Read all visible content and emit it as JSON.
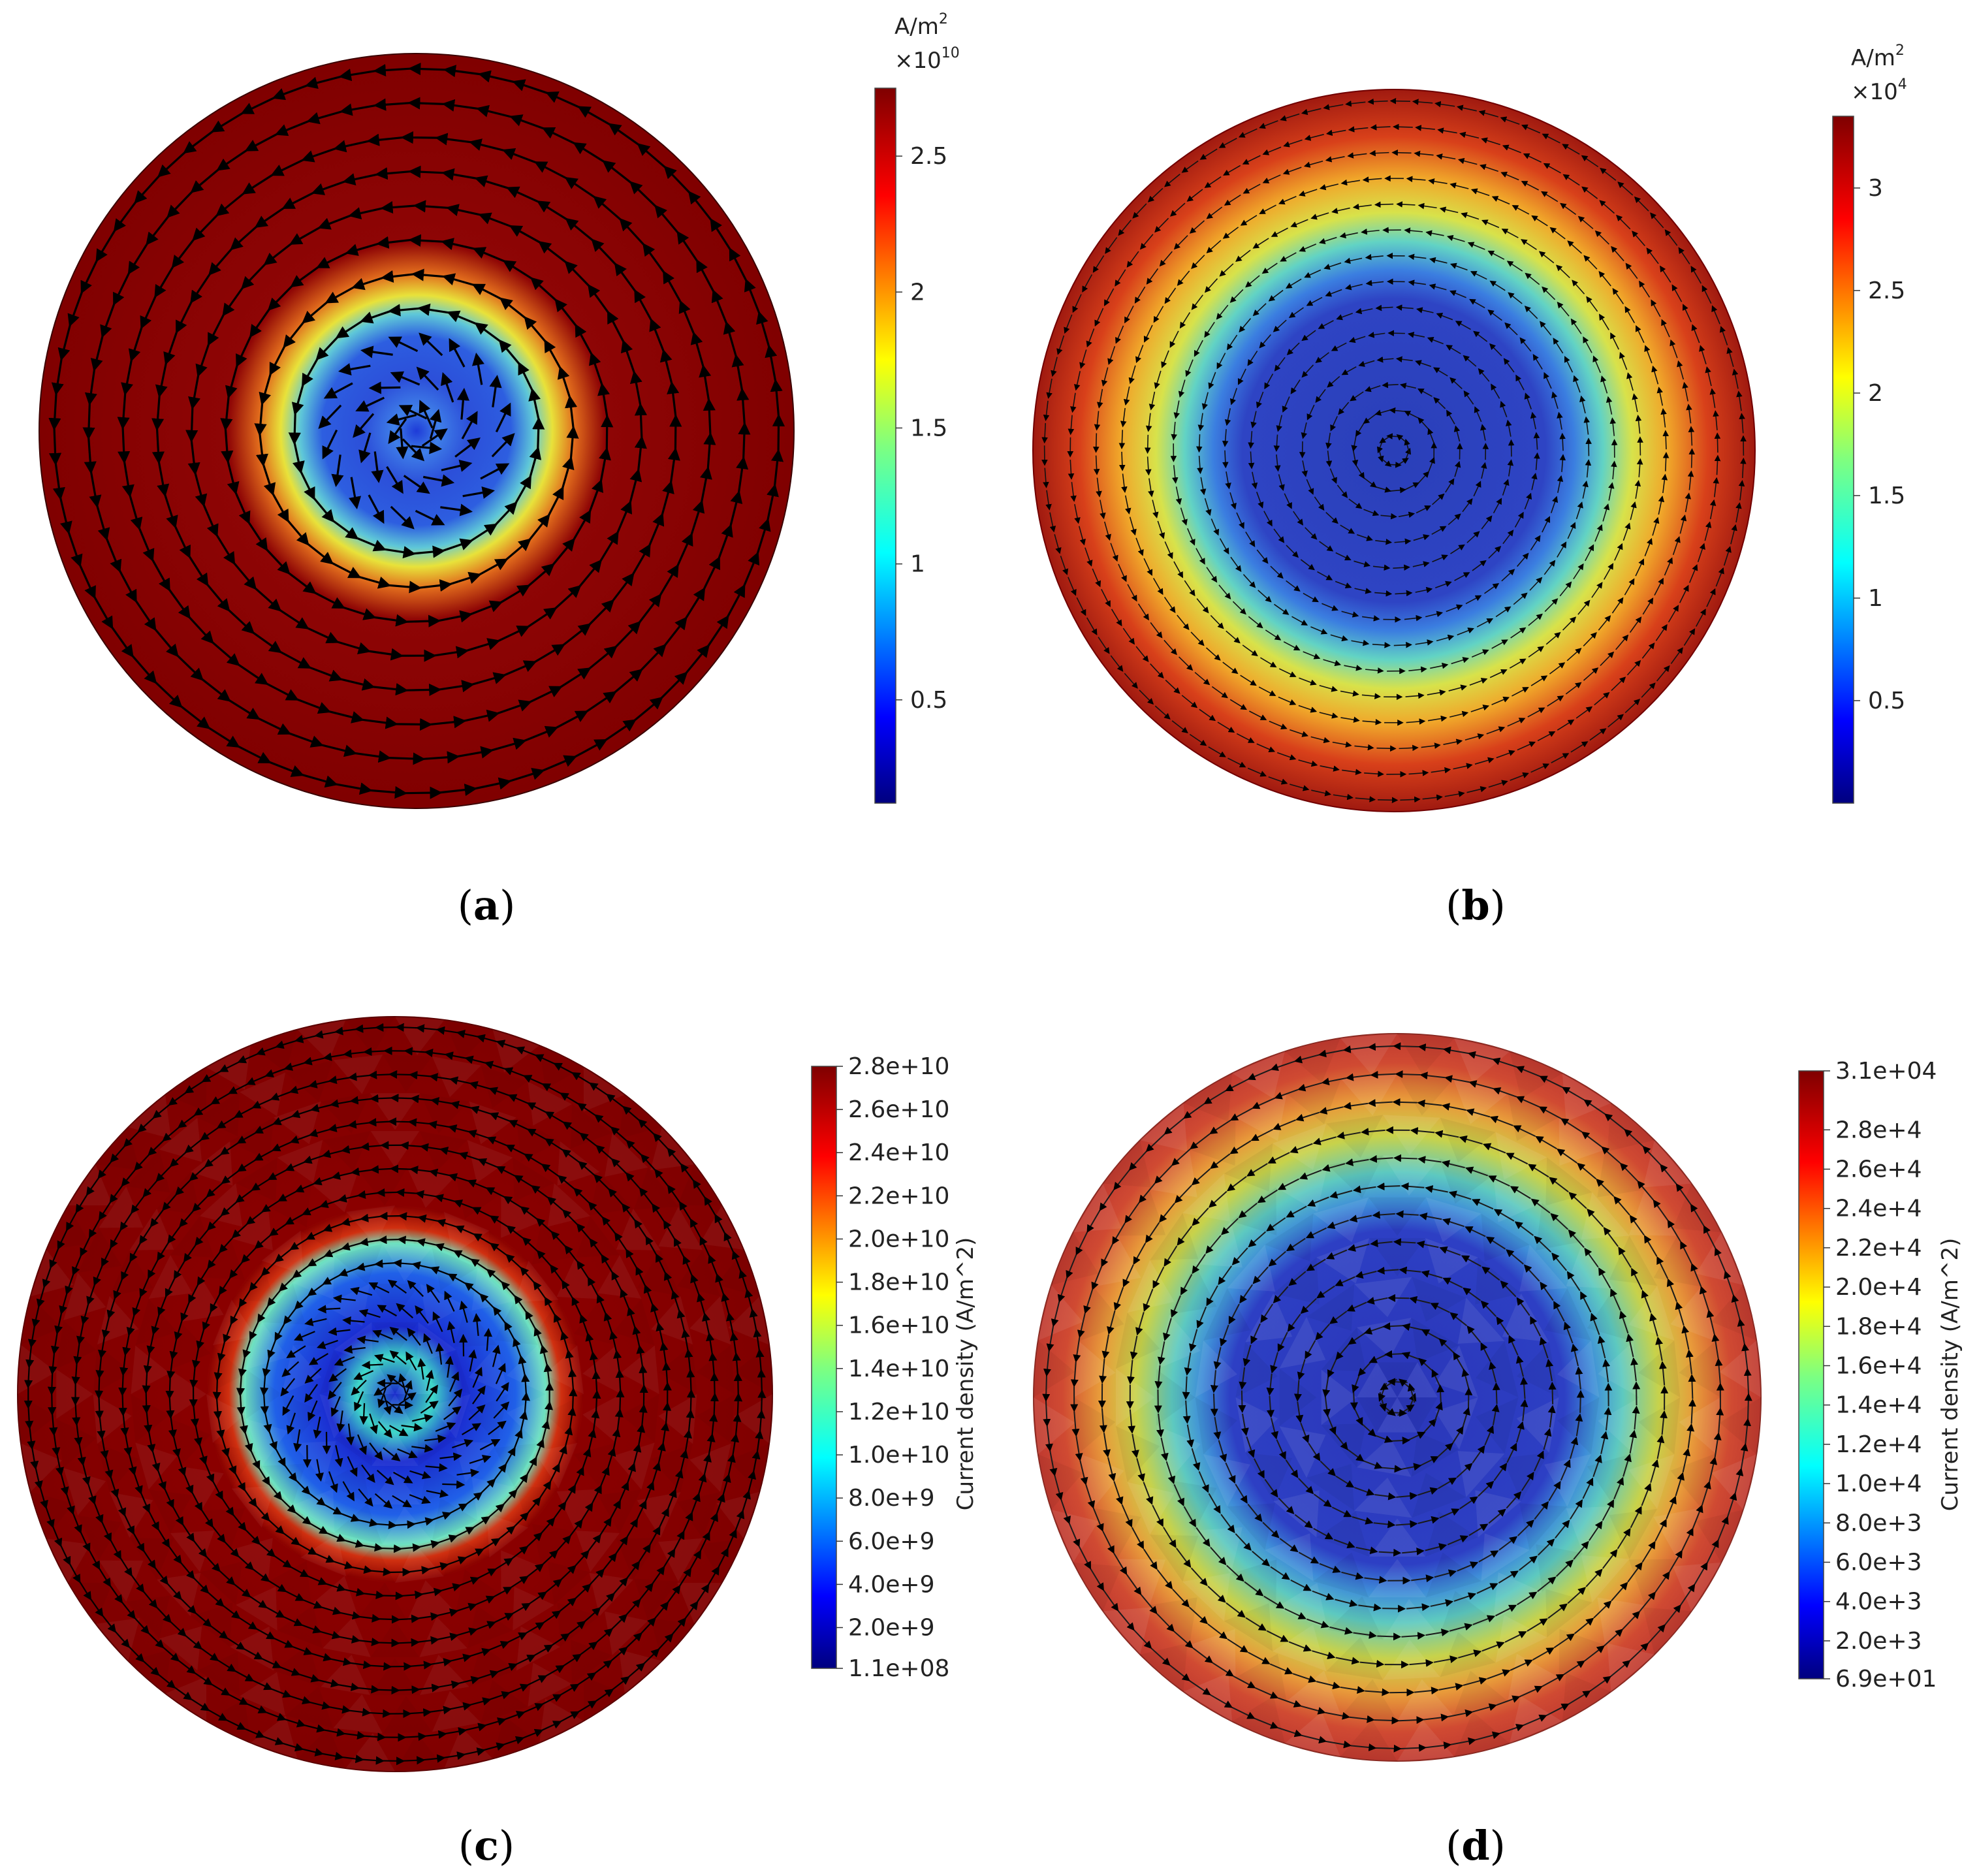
{
  "figure": {
    "panels": [
      {
        "id": "a",
        "caption": "(a)",
        "caption_letter": "a",
        "colorbar": {
          "unit": "A/m",
          "unit_sup": "2",
          "multiplier": "×10",
          "multiplier_sup": "10",
          "ticks": [
            "0.5",
            "1",
            "1.5",
            "2",
            "2.5"
          ],
          "tick_values": [
            0.5,
            1.0,
            1.5,
            2.0,
            2.5
          ],
          "range": [
            0.12,
            2.75
          ],
          "title": ""
        },
        "field": {
          "style": "smooth",
          "core_radius_fraction": 0.42,
          "spiral_core": true
        }
      },
      {
        "id": "b",
        "caption": "(b)",
        "caption_letter": "b",
        "colorbar": {
          "unit": "A/m",
          "unit_sup": "2",
          "multiplier": "×10",
          "multiplier_sup": "4",
          "ticks": [
            "0.5",
            "1",
            "1.5",
            "2",
            "2.5",
            "3"
          ],
          "tick_values": [
            0.5,
            1.0,
            1.5,
            2.0,
            2.5,
            3.0
          ],
          "range": [
            0.0,
            3.35
          ],
          "title": ""
        },
        "field": {
          "style": "smooth",
          "core_radius_fraction": 0.7,
          "spiral_core": false
        }
      },
      {
        "id": "c",
        "caption": "(c)",
        "caption_letter": "c",
        "colorbar": {
          "unit": "",
          "unit_sup": "",
          "multiplier": "",
          "multiplier_sup": "",
          "ticks": [
            "1.1e+08",
            "2.0e+9",
            "4.0e+9",
            "6.0e+9",
            "8.0e+9",
            "1.0e+10",
            "1.2e+10",
            "1.4e+10",
            "1.6e+10",
            "1.8e+10",
            "2.0e+10",
            "2.2e+10",
            "2.4e+10",
            "2.6e+10",
            "2.8e+10"
          ],
          "tick_values": [
            0.11,
            2.0,
            4.0,
            6.0,
            8.0,
            10.0,
            12.0,
            14.0,
            16.0,
            18.0,
            20.0,
            22.0,
            24.0,
            26.0,
            28.0
          ],
          "range": [
            0.11,
            28.0
          ],
          "title": "Current density  (A/m^2)"
        },
        "field": {
          "style": "faceted",
          "core_radius_fraction": 0.42,
          "spiral_core": true
        }
      },
      {
        "id": "d",
        "caption": "(d)",
        "caption_letter": "d",
        "colorbar": {
          "unit": "",
          "unit_sup": "",
          "multiplier": "",
          "multiplier_sup": "",
          "ticks": [
            "6.9e+01",
            "2.0e+3",
            "4.0e+3",
            "6.0e+3",
            "8.0e+3",
            "1.0e+4",
            "1.2e+4",
            "1.4e+4",
            "1.6e+4",
            "1.8e+4",
            "2.0e+4",
            "2.2e+4",
            "2.4e+4",
            "2.6e+4",
            "2.8e+4",
            "3.1e+04"
          ],
          "tick_values": [
            0.069,
            2.0,
            4.0,
            6.0,
            8.0,
            10.0,
            12.0,
            14.0,
            16.0,
            18.0,
            20.0,
            22.0,
            24.0,
            26.0,
            28.0,
            31.0
          ],
          "range": [
            0.069,
            31.0
          ],
          "title": "Current density  (A/m^2)"
        },
        "field": {
          "style": "faceted",
          "core_radius_fraction": 0.7,
          "spiral_core": false
        }
      }
    ],
    "colormap": [
      "#00007f",
      "#0000ff",
      "#007fff",
      "#00ffff",
      "#7fff7f",
      "#ffff00",
      "#ff7f00",
      "#ff0000",
      "#7f0000"
    ]
  }
}
